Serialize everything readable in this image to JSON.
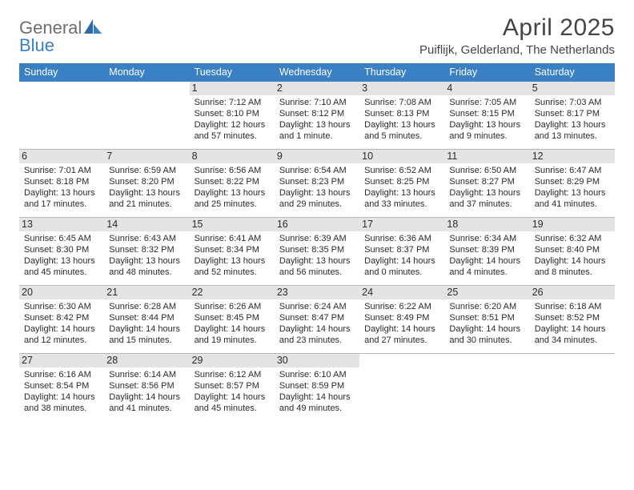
{
  "logo": {
    "word1": "General",
    "word2": "Blue"
  },
  "title": "April 2025",
  "subtitle": "Puiflijk, Gelderland, The Netherlands",
  "colors": {
    "header_bg": "#3a80c4",
    "header_text": "#ffffff",
    "daynum_bg": "#e4e4e4",
    "text": "#2a2a2a",
    "rule": "#b8b8b8",
    "title_color": "#454545",
    "logo_gray": "#6e6e6e",
    "logo_blue": "#3a80c4",
    "page_bg": "#ffffff"
  },
  "layout": {
    "typography": {
      "title_pt": 30,
      "subtitle_pt": 15,
      "dayhead_pt": 12.5,
      "daynum_pt": 12.5,
      "body_pt": 11,
      "logo_pt": 22
    },
    "columns": 7
  },
  "dayLabels": [
    "Sunday",
    "Monday",
    "Tuesday",
    "Wednesday",
    "Thursday",
    "Friday",
    "Saturday"
  ],
  "weeks": [
    [
      null,
      null,
      {
        "n": "1",
        "sr": "7:12 AM",
        "ss": "8:10 PM",
        "dl": "12 hours and 57 minutes."
      },
      {
        "n": "2",
        "sr": "7:10 AM",
        "ss": "8:12 PM",
        "dl": "13 hours and 1 minute."
      },
      {
        "n": "3",
        "sr": "7:08 AM",
        "ss": "8:13 PM",
        "dl": "13 hours and 5 minutes."
      },
      {
        "n": "4",
        "sr": "7:05 AM",
        "ss": "8:15 PM",
        "dl": "13 hours and 9 minutes."
      },
      {
        "n": "5",
        "sr": "7:03 AM",
        "ss": "8:17 PM",
        "dl": "13 hours and 13 minutes."
      }
    ],
    [
      {
        "n": "6",
        "sr": "7:01 AM",
        "ss": "8:18 PM",
        "dl": "13 hours and 17 minutes."
      },
      {
        "n": "7",
        "sr": "6:59 AM",
        "ss": "8:20 PM",
        "dl": "13 hours and 21 minutes."
      },
      {
        "n": "8",
        "sr": "6:56 AM",
        "ss": "8:22 PM",
        "dl": "13 hours and 25 minutes."
      },
      {
        "n": "9",
        "sr": "6:54 AM",
        "ss": "8:23 PM",
        "dl": "13 hours and 29 minutes."
      },
      {
        "n": "10",
        "sr": "6:52 AM",
        "ss": "8:25 PM",
        "dl": "13 hours and 33 minutes."
      },
      {
        "n": "11",
        "sr": "6:50 AM",
        "ss": "8:27 PM",
        "dl": "13 hours and 37 minutes."
      },
      {
        "n": "12",
        "sr": "6:47 AM",
        "ss": "8:29 PM",
        "dl": "13 hours and 41 minutes."
      }
    ],
    [
      {
        "n": "13",
        "sr": "6:45 AM",
        "ss": "8:30 PM",
        "dl": "13 hours and 45 minutes."
      },
      {
        "n": "14",
        "sr": "6:43 AM",
        "ss": "8:32 PM",
        "dl": "13 hours and 48 minutes."
      },
      {
        "n": "15",
        "sr": "6:41 AM",
        "ss": "8:34 PM",
        "dl": "13 hours and 52 minutes."
      },
      {
        "n": "16",
        "sr": "6:39 AM",
        "ss": "8:35 PM",
        "dl": "13 hours and 56 minutes."
      },
      {
        "n": "17",
        "sr": "6:36 AM",
        "ss": "8:37 PM",
        "dl": "14 hours and 0 minutes."
      },
      {
        "n": "18",
        "sr": "6:34 AM",
        "ss": "8:39 PM",
        "dl": "14 hours and 4 minutes."
      },
      {
        "n": "19",
        "sr": "6:32 AM",
        "ss": "8:40 PM",
        "dl": "14 hours and 8 minutes."
      }
    ],
    [
      {
        "n": "20",
        "sr": "6:30 AM",
        "ss": "8:42 PM",
        "dl": "14 hours and 12 minutes."
      },
      {
        "n": "21",
        "sr": "6:28 AM",
        "ss": "8:44 PM",
        "dl": "14 hours and 15 minutes."
      },
      {
        "n": "22",
        "sr": "6:26 AM",
        "ss": "8:45 PM",
        "dl": "14 hours and 19 minutes."
      },
      {
        "n": "23",
        "sr": "6:24 AM",
        "ss": "8:47 PM",
        "dl": "14 hours and 23 minutes."
      },
      {
        "n": "24",
        "sr": "6:22 AM",
        "ss": "8:49 PM",
        "dl": "14 hours and 27 minutes."
      },
      {
        "n": "25",
        "sr": "6:20 AM",
        "ss": "8:51 PM",
        "dl": "14 hours and 30 minutes."
      },
      {
        "n": "26",
        "sr": "6:18 AM",
        "ss": "8:52 PM",
        "dl": "14 hours and 34 minutes."
      }
    ],
    [
      {
        "n": "27",
        "sr": "6:16 AM",
        "ss": "8:54 PM",
        "dl": "14 hours and 38 minutes."
      },
      {
        "n": "28",
        "sr": "6:14 AM",
        "ss": "8:56 PM",
        "dl": "14 hours and 41 minutes."
      },
      {
        "n": "29",
        "sr": "6:12 AM",
        "ss": "8:57 PM",
        "dl": "14 hours and 45 minutes."
      },
      {
        "n": "30",
        "sr": "6:10 AM",
        "ss": "8:59 PM",
        "dl": "14 hours and 49 minutes."
      },
      null,
      null,
      null
    ]
  ],
  "labels": {
    "sunrise": "Sunrise: ",
    "sunset": "Sunset: ",
    "daylight": "Daylight: "
  }
}
